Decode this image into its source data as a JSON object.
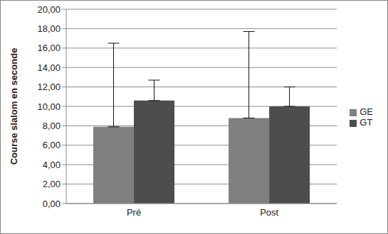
{
  "chart_data": {
    "type": "bar",
    "y_label": "Course slalom en seconde",
    "categories": [
      "Pré",
      "Post"
    ],
    "series": [
      {
        "name": "GE",
        "color": "#7f7f7f",
        "values": [
          7.9,
          8.8
        ],
        "errors": [
          8.6,
          8.9
        ]
      },
      {
        "name": "GT",
        "color": "#4d4d4d",
        "values": [
          10.6,
          10.0
        ],
        "errors": [
          2.1,
          2.0
        ]
      }
    ],
    "ylim": [
      0,
      20
    ],
    "yticks": [
      {
        "value": 0,
        "label": "0,00"
      },
      {
        "value": 2,
        "label": "2,00"
      },
      {
        "value": 4,
        "label": "4,00"
      },
      {
        "value": 6,
        "label": "6,00"
      },
      {
        "value": 8,
        "label": "8,00"
      },
      {
        "value": 10,
        "label": "10,00"
      },
      {
        "value": 12,
        "label": "12,00"
      },
      {
        "value": 14,
        "label": "14,00"
      },
      {
        "value": 16,
        "label": "16,00"
      },
      {
        "value": 18,
        "label": "18,00"
      },
      {
        "value": 20,
        "label": "20,00"
      }
    ],
    "grid": true,
    "legend": "right"
  }
}
